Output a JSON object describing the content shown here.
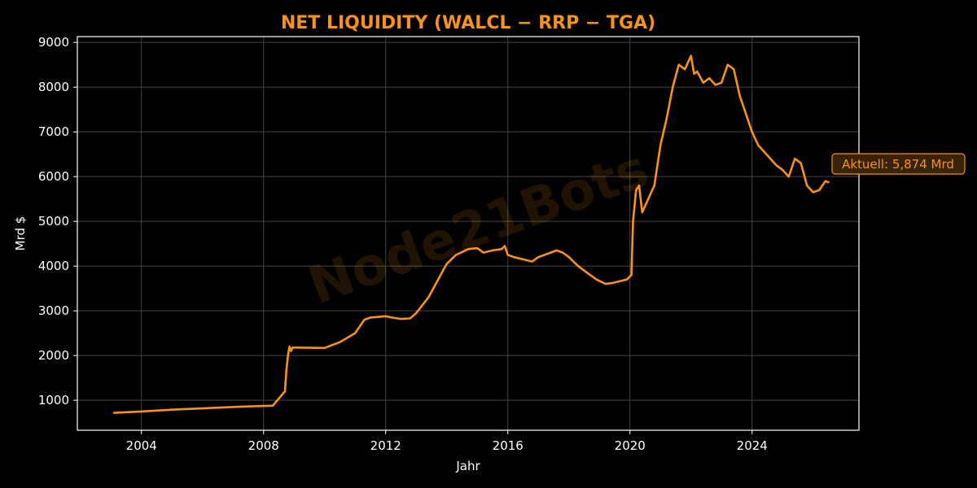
{
  "chart_data": {
    "type": "line",
    "title": "NET LIQUIDITY (WALCL − RRP − TGA)",
    "xlabel": "Jahr",
    "ylabel": "Mrd $",
    "xlim": [
      2001.9,
      2027.5
    ],
    "ylim": [
      330,
      9130
    ],
    "x_ticks": [
      2004,
      2008,
      2012,
      2016,
      2020,
      2024
    ],
    "y_ticks": [
      1000,
      2000,
      3000,
      4000,
      5000,
      6000,
      7000,
      8000,
      9000
    ],
    "grid": true,
    "watermark": "Node21Bots",
    "callout": "Aktuell: 5,874 Mrd",
    "colors": {
      "background": "#000000",
      "line": "#f7931a",
      "grid": "#555555",
      "text": "#ffffff"
    },
    "series": [
      {
        "x": [
          2003.1,
          2004.0,
          2005.0,
          2006.0,
          2007.3,
          2008.3,
          2008.7,
          2008.75,
          2008.8,
          2008.85,
          2008.9,
          2008.95,
          2009.0,
          2010.0,
          2010.5,
          2011.0,
          2011.3,
          2011.5,
          2012.0,
          2012.2,
          2012.5,
          2012.8,
          2013.0,
          2013.4,
          2013.8,
          2014.0,
          2014.3,
          2014.7,
          2015.0,
          2015.2,
          2015.5,
          2015.8,
          2015.9,
          2016.0,
          2016.2,
          2016.5,
          2016.8,
          2017.0,
          2017.2,
          2017.4,
          2017.6,
          2017.8,
          2018.0,
          2018.3,
          2018.6,
          2018.9,
          2019.2,
          2019.4,
          2019.6,
          2019.9,
          2020.05,
          2020.1,
          2020.2,
          2020.3,
          2020.4,
          2020.6,
          2020.8,
          2021.0,
          2021.2,
          2021.4,
          2021.6,
          2021.8,
          2022.0,
          2022.1,
          2022.2,
          2022.4,
          2022.6,
          2022.8,
          2023.0,
          2023.2,
          2023.4,
          2023.6,
          2023.8,
          2024.0,
          2024.2,
          2024.4,
          2024.6,
          2024.8,
          2025.0,
          2025.2,
          2025.4,
          2025.6,
          2025.8,
          2026.0,
          2026.2,
          2026.4,
          2026.5
        ],
        "y": [
          720,
          750,
          790,
          820,
          860,
          880,
          1200,
          1700,
          2000,
          2200,
          2100,
          2180,
          2180,
          2170,
          2300,
          2500,
          2800,
          2850,
          2880,
          2850,
          2820,
          2830,
          2950,
          3300,
          3800,
          4050,
          4250,
          4380,
          4400,
          4300,
          4350,
          4380,
          4450,
          4250,
          4200,
          4150,
          4100,
          4200,
          4250,
          4300,
          4350,
          4300,
          4200,
          4000,
          3850,
          3700,
          3600,
          3620,
          3650,
          3700,
          3800,
          5000,
          5700,
          5800,
          5200,
          5500,
          5800,
          6700,
          7300,
          8000,
          8500,
          8400,
          8700,
          8300,
          8350,
          8100,
          8200,
          8050,
          8100,
          8500,
          8400,
          7800,
          7400,
          7000,
          6700,
          6550,
          6400,
          6250,
          6150,
          6000,
          6400,
          6300,
          5800,
          5650,
          5700,
          5900,
          5874
        ]
      }
    ]
  }
}
